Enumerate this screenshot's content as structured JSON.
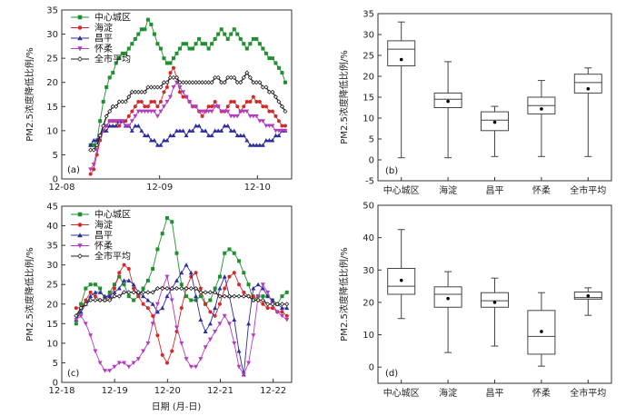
{
  "colors": {
    "中心城区": "#1f8f2f",
    "海淀": "#d22a2a",
    "昌平": "#2d2d9b",
    "怀柔": "#b23cc0",
    "全市平均": "#222222",
    "axis": "#333333",
    "box": "#444444"
  },
  "icons": {
    "中心城区": "square",
    "海淀": "circle",
    "昌平": "triangle",
    "怀柔": "triangle-down",
    "全市平均": "diamond-open"
  },
  "xlabel_c": "日期 (月-日)",
  "ylabel": "PM2.5浓度降低比例/%",
  "chart_data": [
    {
      "panel": "(a)",
      "type": "line",
      "x_ticks": [
        "12-08",
        "12-09",
        "12-10"
      ],
      "xlim": [
        0,
        72
      ],
      "ylim": [
        0,
        35
      ],
      "y_ticks": [
        0,
        5,
        10,
        15,
        20,
        25,
        30,
        35
      ],
      "x": [
        9,
        10,
        11,
        12,
        13,
        14,
        15,
        16,
        17,
        18,
        19,
        20,
        21,
        22,
        23,
        24,
        25,
        26,
        27,
        28,
        29,
        30,
        31,
        32,
        33,
        34,
        35,
        36,
        37,
        38,
        39,
        40,
        41,
        42,
        43,
        44,
        45,
        46,
        47,
        48,
        49,
        50,
        51,
        52,
        53,
        54,
        55,
        56,
        57,
        58,
        59,
        60,
        61,
        62,
        63,
        64,
        65,
        66,
        67,
        68,
        69,
        70
      ],
      "series": [
        {
          "name": "中心城区",
          "marker": "square",
          "values": [
            7,
            7,
            8,
            12,
            16,
            19,
            21,
            22,
            24,
            25,
            26,
            26,
            27,
            28,
            29,
            30,
            31,
            31,
            33,
            32,
            30,
            28,
            27,
            25,
            24,
            24,
            25,
            26,
            27,
            28,
            28,
            27,
            27,
            28,
            29,
            28,
            28,
            27,
            28,
            29,
            30,
            31,
            30,
            29,
            30,
            31,
            30,
            29,
            28,
            27,
            28,
            29,
            29,
            28,
            27,
            26,
            25,
            25,
            24,
            23,
            22,
            20
          ]
        },
        {
          "name": "海淀",
          "marker": "circle",
          "values": [
            1,
            2,
            5,
            8,
            10,
            11,
            12,
            12,
            12,
            11,
            12,
            12,
            13,
            14,
            15,
            16,
            16,
            15,
            15,
            16,
            16,
            15,
            16,
            18,
            19,
            22,
            23,
            21,
            18,
            17,
            17,
            16,
            15,
            15,
            14,
            13,
            14,
            15,
            15,
            16,
            15,
            14,
            14,
            15,
            16,
            16,
            15,
            14,
            15,
            16,
            16,
            17,
            16,
            16,
            15,
            15,
            14,
            14,
            13,
            12,
            11,
            11
          ]
        },
        {
          "name": "昌平",
          "marker": "triangle",
          "values": [
            7,
            8,
            8,
            9,
            10,
            10,
            11,
            11,
            11,
            12,
            12,
            11,
            11,
            10,
            11,
            11,
            10,
            9,
            9,
            8,
            8,
            7,
            7,
            8,
            8,
            9,
            9,
            10,
            10,
            10,
            9,
            10,
            10,
            11,
            11,
            10,
            10,
            9,
            9,
            10,
            10,
            10,
            11,
            11,
            10,
            10,
            9,
            9,
            9,
            8,
            7,
            7,
            7,
            7,
            7,
            8,
            8,
            8,
            9,
            9,
            10,
            10
          ]
        },
        {
          "name": "怀柔",
          "marker": "triangle-down",
          "values": [
            2,
            3,
            6,
            9,
            10,
            11,
            12,
            12,
            12,
            12,
            12,
            11,
            11,
            12,
            13,
            14,
            14,
            14,
            14,
            14,
            14,
            13,
            14,
            15,
            16,
            17,
            19,
            20,
            19,
            18,
            17,
            16,
            15,
            15,
            14,
            14,
            14,
            14,
            14,
            15,
            15,
            14,
            14,
            14,
            13,
            13,
            13,
            14,
            14,
            14,
            13,
            13,
            13,
            12,
            12,
            11,
            11,
            11,
            10,
            10,
            10,
            10
          ]
        },
        {
          "name": "全市平均",
          "marker": "diamond-open",
          "values": [
            6,
            6,
            7,
            9,
            11,
            13,
            14,
            15,
            15,
            16,
            16,
            16,
            17,
            18,
            18,
            18,
            18,
            18,
            19,
            19,
            19,
            19,
            19,
            20,
            20,
            21,
            21,
            21,
            20,
            20,
            20,
            20,
            20,
            20,
            20,
            20,
            20,
            20,
            20,
            21,
            21,
            20,
            20,
            21,
            21,
            21,
            20,
            20,
            21,
            22,
            21,
            20,
            20,
            20,
            19,
            19,
            18,
            18,
            17,
            16,
            15,
            14
          ]
        }
      ]
    },
    {
      "panel": "(b)",
      "type": "box",
      "categories": [
        "中心城区",
        "海淀",
        "昌平",
        "怀柔",
        "全市平均"
      ],
      "ylim": [
        -5,
        35
      ],
      "y_ticks": [
        -5,
        0,
        5,
        10,
        15,
        20,
        25,
        30,
        35
      ],
      "boxes": [
        {
          "min": 0.5,
          "q1": 22.5,
          "median": 26.5,
          "q3": 28.5,
          "max": 33,
          "mean": 24
        },
        {
          "min": 0.5,
          "q1": 12.5,
          "median": 14.5,
          "q3": 16,
          "max": 23.5,
          "mean": 14
        },
        {
          "min": 0.8,
          "q1": 7,
          "median": 9.5,
          "q3": 11.5,
          "max": 12.8,
          "mean": 9
        },
        {
          "min": 0.8,
          "q1": 11,
          "median": 13,
          "q3": 15,
          "max": 19,
          "mean": 12.2
        },
        {
          "min": 0.8,
          "q1": 16,
          "median": 18.5,
          "q3": 20.5,
          "max": 22,
          "mean": 17
        }
      ]
    },
    {
      "panel": "(c)",
      "type": "line",
      "x_ticks": [
        "12-18",
        "12-19",
        "12-20",
        "12-21",
        "12-22"
      ],
      "xlim": [
        0,
        96
      ],
      "ylim": [
        0,
        45
      ],
      "y_ticks": [
        0,
        5,
        10,
        15,
        20,
        25,
        30,
        35,
        40,
        45
      ],
      "x": [
        6,
        8,
        10,
        12,
        14,
        16,
        18,
        20,
        22,
        24,
        26,
        28,
        30,
        32,
        34,
        36,
        38,
        40,
        42,
        44,
        46,
        48,
        50,
        52,
        54,
        56,
        58,
        60,
        62,
        64,
        66,
        68,
        70,
        72,
        74,
        76,
        78,
        80,
        82,
        84,
        86,
        88,
        90,
        92,
        94
      ],
      "series": [
        {
          "name": "中心城区",
          "marker": "square",
          "values": [
            15,
            20,
            24,
            25,
            25,
            24,
            21,
            23,
            25,
            27,
            25,
            22,
            21,
            22,
            24,
            26,
            29,
            34,
            38,
            42,
            41,
            33,
            25,
            22,
            21,
            21,
            22,
            20,
            21,
            24,
            27,
            33,
            34,
            33,
            31,
            28,
            25,
            21,
            22,
            22,
            22,
            21,
            20,
            22,
            23
          ]
        },
        {
          "name": "海淀",
          "marker": "circle",
          "values": [
            19,
            19,
            21,
            23,
            22,
            21,
            21,
            22,
            24,
            28,
            30,
            29,
            24,
            22,
            20,
            19,
            17,
            12,
            7,
            5,
            8,
            13,
            19,
            24,
            27,
            28,
            24,
            20,
            18,
            17,
            20,
            24,
            27,
            28,
            25,
            23,
            22,
            22,
            21,
            20,
            19,
            19,
            18,
            18,
            17
          ]
        },
        {
          "name": "昌平",
          "marker": "triangle",
          "values": [
            16,
            18,
            20,
            22,
            23,
            23,
            22,
            22,
            23,
            24,
            26,
            26,
            25,
            23,
            22,
            21,
            20,
            18,
            19,
            22,
            24,
            26,
            28,
            30,
            28,
            22,
            16,
            13,
            15,
            19,
            24,
            27,
            22,
            16,
            8,
            2,
            15,
            24,
            25,
            24,
            22,
            21,
            20,
            19,
            19
          ]
        },
        {
          "name": "怀柔",
          "marker": "triangle-down",
          "values": [
            16,
            17,
            15,
            12,
            8,
            5,
            3,
            3,
            4,
            5,
            5,
            4,
            5,
            6,
            8,
            10,
            15,
            20,
            24,
            27,
            21,
            14,
            10,
            6,
            4,
            4,
            6,
            9,
            11,
            13,
            15,
            17,
            15,
            10,
            4,
            2,
            5,
            12,
            22,
            25,
            23,
            20,
            18,
            17,
            16
          ]
        },
        {
          "name": "全市平均",
          "marker": "diamond-open",
          "values": [
            17,
            19,
            20,
            21,
            21,
            21,
            21,
            21,
            22,
            22,
            23,
            23,
            23,
            23,
            23,
            23,
            23,
            24,
            24,
            24,
            24,
            24,
            24,
            24,
            24,
            24,
            23,
            23,
            23,
            23,
            22,
            22,
            22,
            22,
            22,
            22,
            22,
            21,
            21,
            21,
            20,
            20,
            20,
            20,
            20
          ]
        }
      ]
    },
    {
      "panel": "(d)",
      "type": "box",
      "categories": [
        "中心城区",
        "海淀",
        "昌平",
        "怀柔",
        "全市平均"
      ],
      "ylim": [
        -5,
        50
      ],
      "y_ticks": [
        0,
        10,
        20,
        30,
        40,
        50
      ],
      "boxes": [
        {
          "min": 15,
          "q1": 22.5,
          "median": 25,
          "q3": 30.5,
          "max": 42.5,
          "mean": 26.8
        },
        {
          "min": 4.5,
          "q1": 18.5,
          "median": 22.5,
          "q3": 24.8,
          "max": 29.5,
          "mean": 21.2
        },
        {
          "min": 6.5,
          "q1": 18.5,
          "median": 20.5,
          "q3": 23,
          "max": 27.5,
          "mean": 20
        },
        {
          "min": 0.3,
          "q1": 4,
          "median": 9.5,
          "q3": 17.5,
          "max": 23,
          "mean": 11
        },
        {
          "min": 16,
          "q1": 21,
          "median": 21.5,
          "q3": 23.2,
          "max": 24.5,
          "mean": 22
        }
      ]
    }
  ]
}
